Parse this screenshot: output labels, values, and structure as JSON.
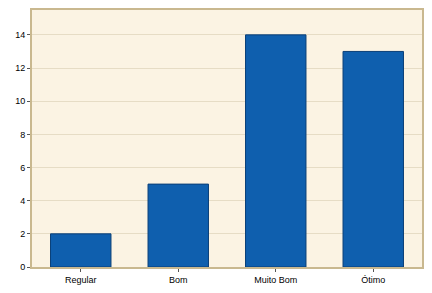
{
  "chart_data": {
    "type": "bar",
    "categories": [
      "Regular",
      "Bom",
      "Muito Bom",
      "Ótimo"
    ],
    "values": [
      2,
      5,
      14,
      13
    ],
    "color": "#0f5fae",
    "ylim": [
      0,
      15.5
    ],
    "yticks": [
      0,
      2,
      4,
      6,
      8,
      10,
      12,
      14
    ],
    "grid": true
  }
}
